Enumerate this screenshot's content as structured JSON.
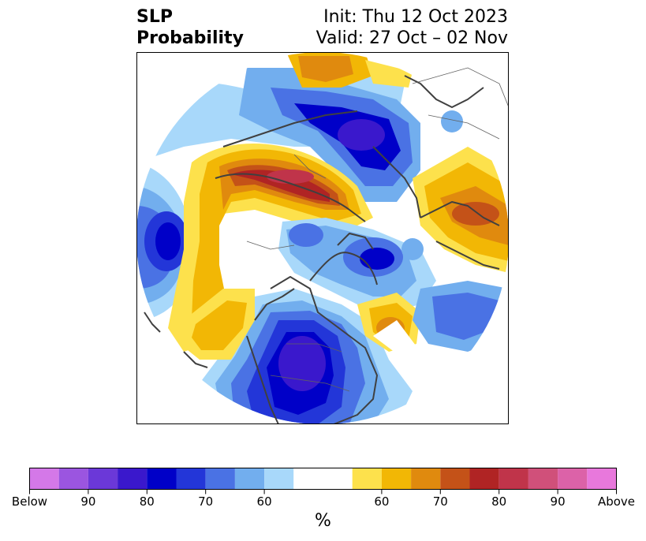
{
  "title": {
    "left_line1": "SLP",
    "left_line2": "Probability",
    "right_line1": "Init: Thu 12 Oct 2023",
    "right_line2": "Valid: 27 Oct – 02 Nov"
  },
  "colorbar": {
    "units": "%",
    "below_colors": [
      "#d478e8",
      "#9b55e0",
      "#6b38d8",
      "#3a18cc",
      "#0000c8",
      "#2336d8",
      "#4a72e4",
      "#72aeee",
      "#a8d8fa"
    ],
    "neutral_color": "#ffffff",
    "above_colors": [
      "#fde14c",
      "#f2b705",
      "#e08a0e",
      "#c45218",
      "#b02424",
      "#c0344a",
      "#d0507a",
      "#dc62a8",
      "#e878dc"
    ],
    "tick_labels": [
      "Below",
      "90",
      "80",
      "70",
      "60",
      "60",
      "70",
      "80",
      "90",
      "Above"
    ]
  },
  "map": {
    "projection": "north-polar-stereographic",
    "field": "sea-level-pressure-probability",
    "colors": {
      "outline": "#000000",
      "coast": "#404040"
    }
  }
}
